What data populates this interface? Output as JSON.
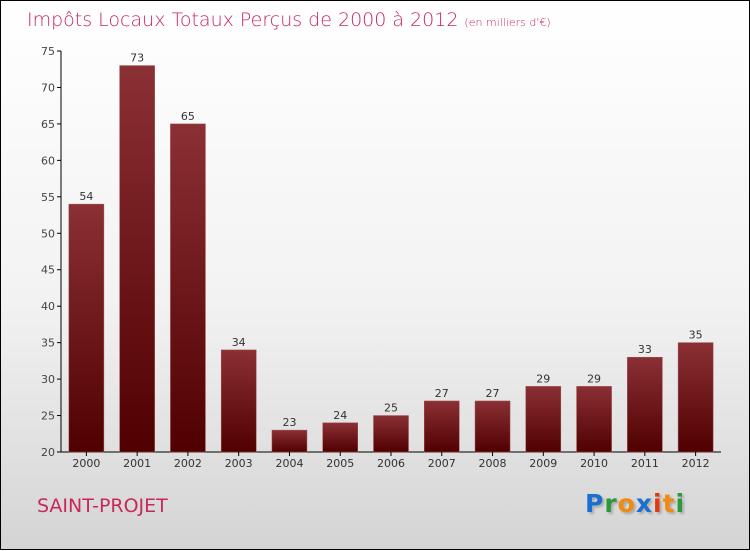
{
  "header": {
    "title": "Impôts Locaux Totaux Perçus de 2000 à 2012",
    "unit": "(en milliers d'€)"
  },
  "footer": {
    "city": "SAINT-PROJET",
    "logo": "Proxiti"
  },
  "colors": {
    "bar_top": "#8b3035",
    "bar_bottom": "#500000",
    "title": "#c8285a"
  },
  "chart_data": {
    "type": "bar",
    "title": "Impôts Locaux Totaux Perçus de 2000 à 2012 (en milliers d'€)",
    "categories": [
      "2000",
      "2001",
      "2002",
      "2003",
      "2004",
      "2005",
      "2006",
      "2007",
      "2008",
      "2009",
      "2010",
      "2011",
      "2012"
    ],
    "values": [
      54,
      73,
      65,
      34,
      23,
      24,
      25,
      27,
      27,
      29,
      29,
      33,
      35
    ],
    "ylim": [
      20,
      75
    ],
    "yticks": [
      20,
      25,
      30,
      35,
      40,
      45,
      50,
      55,
      60,
      65,
      70,
      75
    ],
    "xlabel": "",
    "ylabel": "",
    "grid": false
  }
}
